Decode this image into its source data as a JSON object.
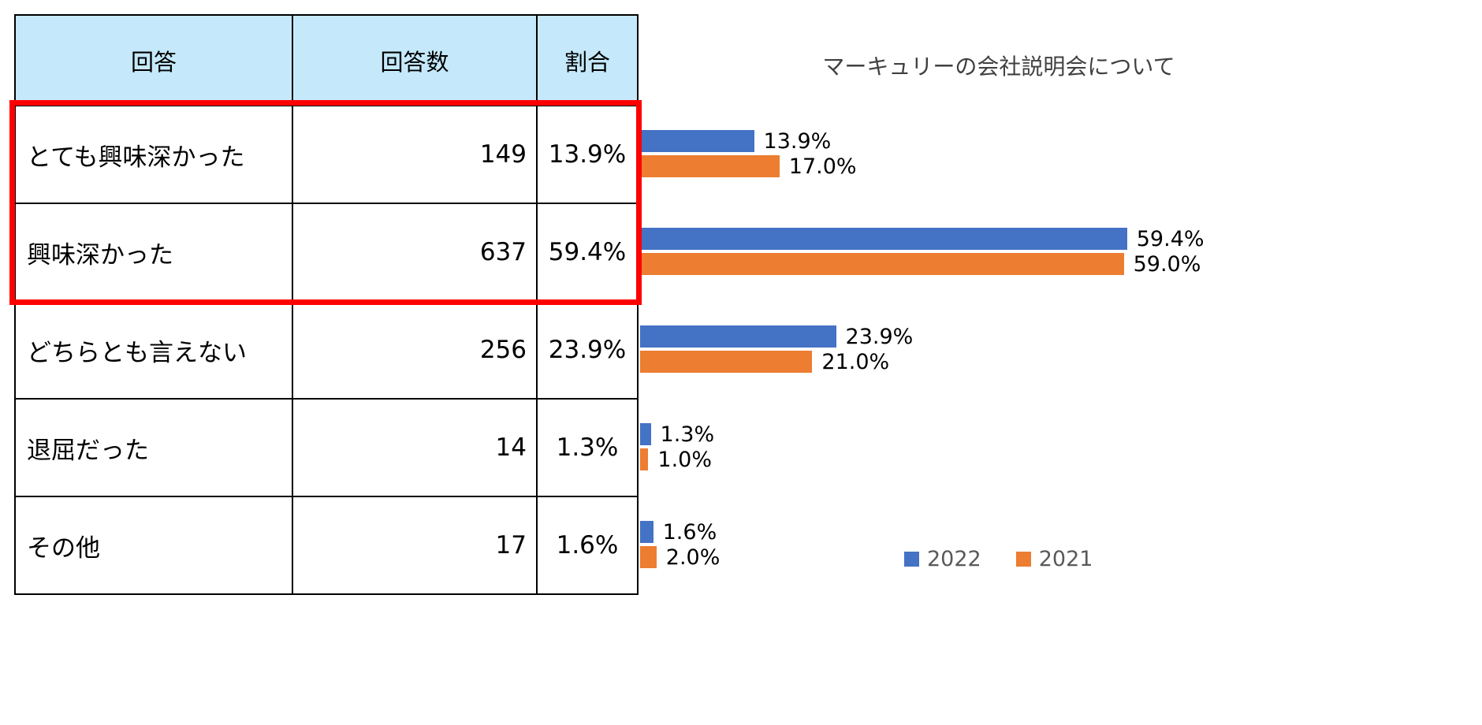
{
  "table": {
    "headers": [
      "回答",
      "回答数",
      "割合"
    ],
    "header_bg": "#C5E9FB",
    "rows": [
      {
        "label": "とても興味深かった",
        "count": "149",
        "pct": "13.9%"
      },
      {
        "label": "興味深かった",
        "count": "637",
        "pct": "59.4%"
      },
      {
        "label": "どちらとも言えない",
        "count": "256",
        "pct": "23.9%"
      },
      {
        "label": "退屈だった",
        "count": "14",
        "pct": "1.3%"
      },
      {
        "label": "その他",
        "count": "17",
        "pct": "1.6%"
      }
    ],
    "highlight": {
      "rows_covered": "とても興味深かった, 興味深かった",
      "color": "#FF0000"
    }
  },
  "chart_data": {
    "type": "bar",
    "orientation": "horizontal",
    "title": "マーキュリーの会社説明会について",
    "categories": [
      "とても興味深かった",
      "興味深かった",
      "どちらとも言えない",
      "退屈だった",
      "その他"
    ],
    "series": [
      {
        "name": "2022",
        "color": "#4472C4",
        "values": [
          13.9,
          59.4,
          23.9,
          1.3,
          1.6
        ],
        "labels": [
          "13.9%",
          "59.4%",
          "23.9%",
          "1.3%",
          "1.6%"
        ]
      },
      {
        "name": "2021",
        "color": "#ED7D31",
        "values": [
          17.0,
          59.0,
          21.0,
          1.0,
          2.0
        ],
        "labels": [
          "17.0%",
          "59.0%",
          "21.0%",
          "1.0%",
          "2.0%"
        ]
      }
    ],
    "xlim": [
      0,
      62
    ],
    "grid": false,
    "legend_position": "bottom-right",
    "legend": [
      "2022",
      "2021"
    ]
  }
}
